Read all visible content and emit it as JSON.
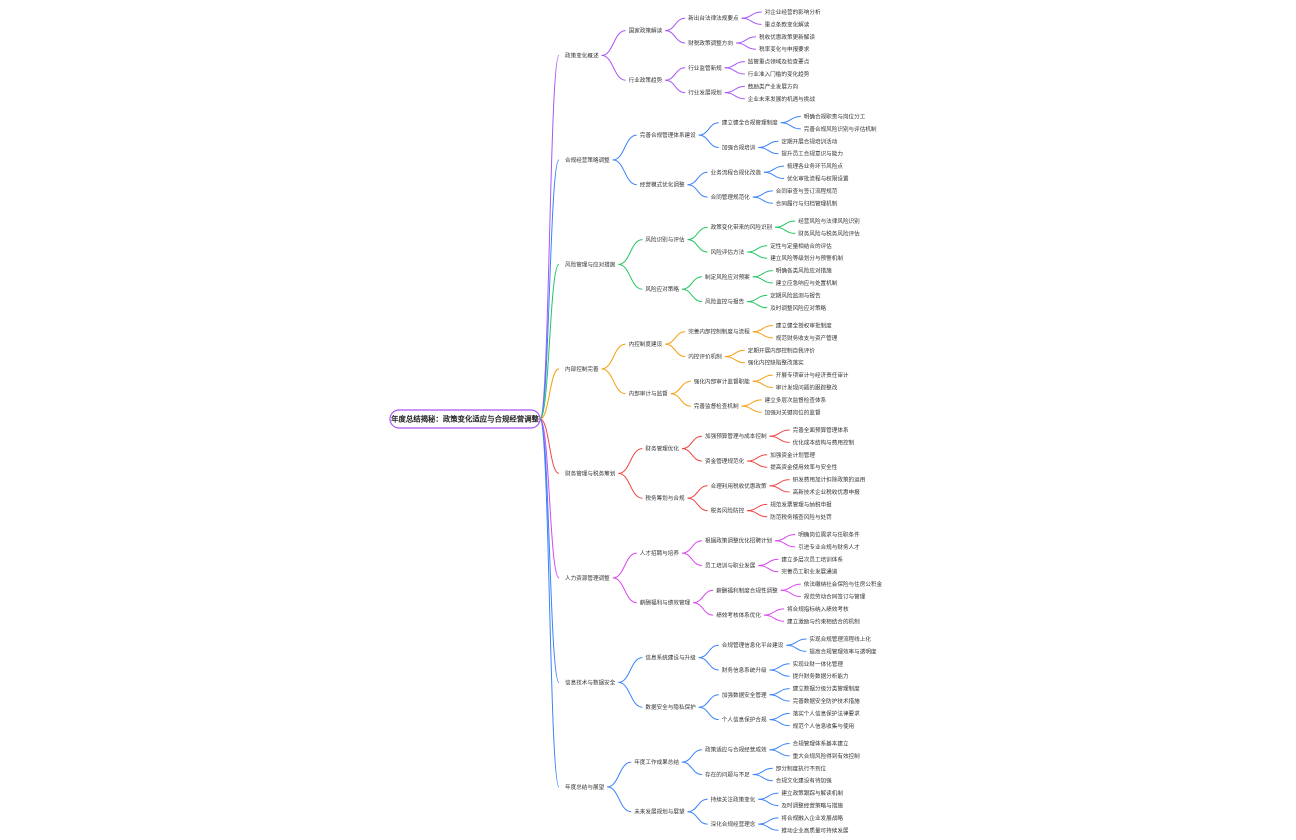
{
  "root": {
    "label": "年度总结揭秘：政策变化适应与合规经营调整",
    "color": "#a855f7"
  },
  "branches": [
    {
      "label": "政策变化概述",
      "color": "#a855f7",
      "children": [
        {
          "label": "国家政策解读",
          "children": [
            {
              "label": "新出台法律法规要点",
              "children": [
                {
                  "label": "对企业经营的影响分析"
                },
                {
                  "label": "重点条款变化解读"
                }
              ]
            },
            {
              "label": "财税政策调整方向",
              "children": [
                {
                  "label": "税收优惠政策更新解读"
                },
                {
                  "label": "税率变化与申报要求"
                }
              ]
            }
          ]
        },
        {
          "label": "行业政策趋势",
          "children": [
            {
              "label": "行业监管新规",
              "children": [
                {
                  "label": "监管重点领域及检查要点"
                },
                {
                  "label": "行业准入门槛的变化趋势"
                }
              ]
            },
            {
              "label": "行业发展规划",
              "children": [
                {
                  "label": "鼓励类产业发展方向"
                },
                {
                  "label": "企业未来发展的机遇与挑战"
                }
              ]
            }
          ]
        }
      ]
    },
    {
      "label": "合规经营策略调整",
      "color": "#3b82f6",
      "children": [
        {
          "label": "完善合规管理体系建设",
          "children": [
            {
              "label": "建立健全合规管理制度",
              "children": [
                {
                  "label": "明确合规职责与岗位分工"
                },
                {
                  "label": "完善合规风险识别与评估机制"
                }
              ]
            },
            {
              "label": "加强合规培训",
              "children": [
                {
                  "label": "定期开展合规培训活动"
                },
                {
                  "label": "提升员工合规意识与能力"
                }
              ]
            }
          ]
        },
        {
          "label": "经营模式优化调整",
          "children": [
            {
              "label": "业务流程合规化改造",
              "children": [
                {
                  "label": "梳理各业务环节风险点"
                },
                {
                  "label": "优化审批流程与权限设置"
                }
              ]
            },
            {
              "label": "合同管理规范化",
              "children": [
                {
                  "label": "合同审查与签订流程规范"
                },
                {
                  "label": "合同履行与归档管理机制"
                }
              ]
            }
          ]
        }
      ]
    },
    {
      "label": "风险管理与应对措施",
      "color": "#22c55e",
      "children": [
        {
          "label": "风险识别与评估",
          "children": [
            {
              "label": "政策变化带来的风险识别",
              "children": [
                {
                  "label": "经营风险与法律风险识别"
                },
                {
                  "label": "财务风险与税务风险评估"
                }
              ]
            },
            {
              "label": "风险评估方法",
              "children": [
                {
                  "label": "定性与定量相结合的评估"
                },
                {
                  "label": "建立风险等级划分与预警机制"
                }
              ]
            }
          ]
        },
        {
          "label": "风险应对策略",
          "children": [
            {
              "label": "制定风险应对预案",
              "children": [
                {
                  "label": "明确各类风险应对措施"
                },
                {
                  "label": "建立应急响应与处置机制"
                }
              ]
            },
            {
              "label": "风险监控与报告",
              "children": [
                {
                  "label": "定期风险监测与报告"
                },
                {
                  "label": "及时调整风险应对策略"
                }
              ]
            }
          ]
        }
      ]
    },
    {
      "label": "内部控制完善",
      "color": "#f59e0b",
      "children": [
        {
          "label": "内控制度建设",
          "children": [
            {
              "label": "完善内部控制制度与流程",
              "children": [
                {
                  "label": "建立健全授权审批制度"
                },
                {
                  "label": "规范财务收支与资产管理"
                }
              ]
            },
            {
              "label": "内控评价机制",
              "children": [
                {
                  "label": "定期开展内部控制自我评价"
                },
                {
                  "label": "强化内控缺陷整改落实"
                }
              ]
            }
          ]
        },
        {
          "label": "内部审计与监督",
          "children": [
            {
              "label": "强化内部审计监督职能",
              "children": [
                {
                  "label": "开展专项审计与经济责任审计"
                },
                {
                  "label": "审计发现问题的跟踪整改"
                }
              ]
            },
            {
              "label": "完善监督检查机制",
              "children": [
                {
                  "label": "建立多层次监督检查体系"
                },
                {
                  "label": "加强对关键岗位的监督"
                }
              ]
            }
          ]
        }
      ]
    },
    {
      "label": "财务管理与税务筹划",
      "color": "#ef4444",
      "children": [
        {
          "label": "财务管理优化",
          "children": [
            {
              "label": "加强预算管理与成本控制",
              "children": [
                {
                  "label": "完善全面预算管理体系"
                },
                {
                  "label": "优化成本结构与费用控制"
                }
              ]
            },
            {
              "label": "资金管理规范化",
              "children": [
                {
                  "label": "加强资金计划管理"
                },
                {
                  "label": "提高资金使用效率与安全性"
                }
              ]
            }
          ]
        },
        {
          "label": "税务筹划与合规",
          "children": [
            {
              "label": "合理利用税收优惠政策",
              "children": [
                {
                  "label": "研发费用加计扣除政策的运用"
                },
                {
                  "label": "高新技术企业税收优惠申报"
                }
              ]
            },
            {
              "label": "税务风险防控",
              "children": [
                {
                  "label": "规范发票管理与纳税申报"
                },
                {
                  "label": "防范税务稽查风险与处罚"
                }
              ]
            }
          ]
        }
      ]
    },
    {
      "label": "人力资源管理调整",
      "color": "#d946ef",
      "children": [
        {
          "label": "人才招聘与培养",
          "children": [
            {
              "label": "根据政策调整优化招聘计划",
              "children": [
                {
                  "label": "明确岗位需求与任职条件"
                },
                {
                  "label": "引进专业合规与财务人才"
                }
              ]
            },
            {
              "label": "员工培训与职业发展",
              "children": [
                {
                  "label": "建立多层次员工培训体系"
                },
                {
                  "label": "完善员工职业发展通道"
                }
              ]
            }
          ]
        },
        {
          "label": "薪酬福利与绩效管理",
          "children": [
            {
              "label": "薪酬福利制度合规性调整",
              "children": [
                {
                  "label": "依法缴纳社会保险与住房公积金"
                },
                {
                  "label": "规范劳动合同签订与管理"
                }
              ]
            },
            {
              "label": "绩效考核体系优化",
              "children": [
                {
                  "label": "将合规指标纳入绩效考核"
                },
                {
                  "label": "建立激励与约束相结合的机制"
                }
              ]
            }
          ]
        }
      ]
    },
    {
      "label": "信息技术与数据安全",
      "color": "#3b82f6",
      "children": [
        {
          "label": "信息系统建设与升级",
          "children": [
            {
              "label": "合规管理信息化平台建设",
              "children": [
                {
                  "label": "实现合规管理流程线上化"
                },
                {
                  "label": "提高合规管理效率与透明度"
                }
              ]
            },
            {
              "label": "财务信息系统升级",
              "children": [
                {
                  "label": "实现业财一体化管理"
                },
                {
                  "label": "提升财务数据分析能力"
                }
              ]
            }
          ]
        },
        {
          "label": "数据安全与隐私保护",
          "children": [
            {
              "label": "加强数据安全管理",
              "children": [
                {
                  "label": "建立数据分级分类管理制度"
                },
                {
                  "label": "完善数据安全防护技术措施"
                }
              ]
            },
            {
              "label": "个人信息保护合规",
              "children": [
                {
                  "label": "落实个人信息保护法律要求"
                },
                {
                  "label": "规范个人信息收集与使用"
                }
              ]
            }
          ]
        }
      ]
    },
    {
      "label": "年度总结与展望",
      "color": "#3b82f6",
      "children": [
        {
          "label": "年度工作成果总结",
          "children": [
            {
              "label": "政策适应与合规经营成效",
              "children": [
                {
                  "label": "合规管理体系基本建立"
                },
                {
                  "label": "重大合规风险得到有效控制"
                }
              ]
            },
            {
              "label": "存在的问题与不足",
              "children": [
                {
                  "label": "部分制度执行不到位"
                },
                {
                  "label": "合规文化建设有待加强"
                }
              ]
            }
          ]
        },
        {
          "label": "未来发展规划与展望",
          "children": [
            {
              "label": "持续关注政策变化",
              "children": [
                {
                  "label": "建立政策跟踪与解读机制"
                },
                {
                  "label": "及时调整经营策略与措施"
                }
              ]
            },
            {
              "label": "深化合规经营理念",
              "children": [
                {
                  "label": "将合规融入企业发展战略"
                },
                {
                  "label": "推动企业高质量可持续发展"
                }
              ]
            }
          ]
        }
      ]
    }
  ]
}
